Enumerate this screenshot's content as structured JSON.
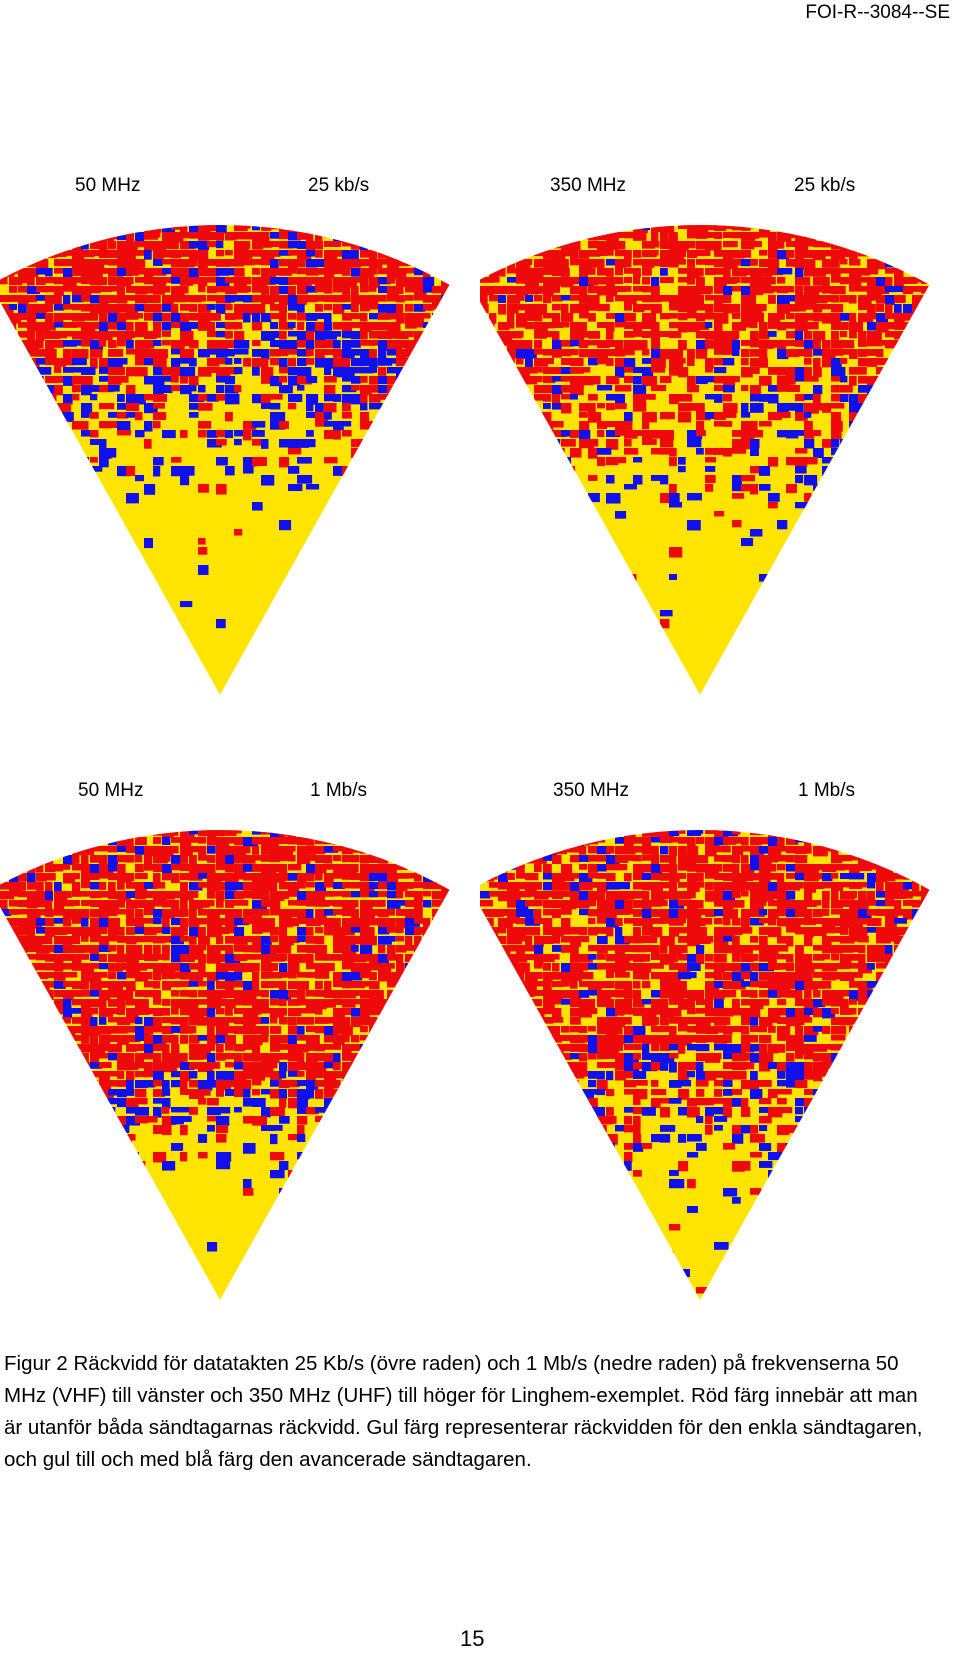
{
  "header": {
    "report_id": "FOI-R--3084--SE"
  },
  "figures": [
    {
      "frequency": "50 MHz",
      "rate": "25 kb/s",
      "colors": [
        "#ee0a0a",
        "#1010ee",
        "#ffe400"
      ]
    },
    {
      "frequency": "350 MHz",
      "rate": "25 kb/s",
      "colors": [
        "#ee0a0a",
        "#1010ee",
        "#ffe400"
      ]
    },
    {
      "frequency": "50 MHz",
      "rate": "1 Mb/s",
      "colors": [
        "#ee0a0a",
        "#1010ee",
        "#ffe400"
      ]
    },
    {
      "frequency": "350 MHz",
      "rate": "1 Mb/s",
      "colors": [
        "#ee0a0a",
        "#1010ee",
        "#ffe400"
      ]
    }
  ],
  "caption": {
    "text": "Figur 2 Räckvidd för datatakten 25 Kb/s (övre raden) och 1 Mb/s (nedre raden) på frekvenserna 50 MHz (VHF) till vänster och 350 MHz (UHF) till höger för Linghem-exemplet. Röd färg innebär att man är utanför båda sändtagarnas räckvidd. Gul färg representerar räckvidden för den enkla sändtagaren, och gul till och med blå färg den avancerade sändtagaren."
  },
  "footer": {
    "page_number": "15"
  }
}
